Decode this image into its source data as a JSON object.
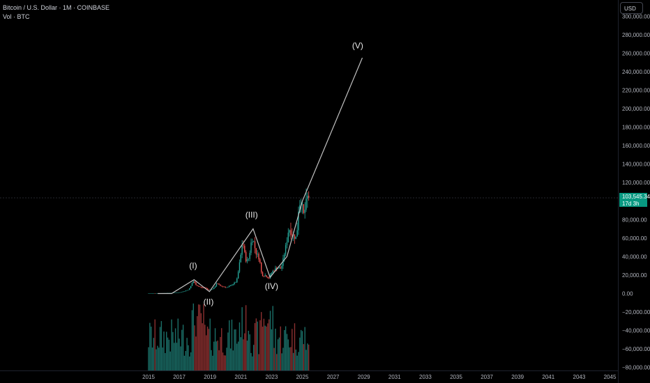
{
  "header": {
    "symbol_line": "Bitcoin / U.S. Dollar · 1M · COINBASE",
    "volume_line": "Vol · BTC"
  },
  "currency_button": "USD",
  "last_price": {
    "value": "103,545.34",
    "countdown": "17d 3h",
    "price": 103545.34
  },
  "colors": {
    "background": "#000000",
    "up": "#26a69a",
    "down": "#ef5350",
    "up_volume": "#1b6f68",
    "down_volume": "#8b3030",
    "wave_line": "#c2c2c2",
    "badge": "#089981"
  },
  "chart_data": {
    "type": "candlestick",
    "title": "Bitcoin / U.S. Dollar · 1M · COINBASE",
    "yaxis": {
      "ylim": [
        -85000,
        310000
      ],
      "ticks": [
        -80000,
        -60000,
        -40000,
        -20000,
        0,
        20000,
        40000,
        60000,
        80000,
        120000,
        140000,
        160000,
        180000,
        200000,
        220000,
        240000,
        260000,
        280000,
        300000
      ],
      "tick_labels": [
        "−80,000.00",
        "−60,000.00",
        "−40,000.00",
        "−20,000.00",
        "0.00",
        "20,000.00",
        "40,000.00",
        "60,000.00",
        "80,000.00",
        "120,000.00",
        "140,000.00",
        "160,000.00",
        "180,000.00",
        "200,000.00",
        "220,000.00",
        "240,000.00",
        "260,000.00",
        "280,000.00",
        "300,000.00"
      ]
    },
    "xaxis": {
      "range": [
        2015.0,
        2045.0
      ],
      "ticks": [
        2015,
        2017,
        2019,
        2021,
        2023,
        2025,
        2027,
        2029,
        2031,
        2033,
        2035,
        2037,
        2039,
        2041,
        2043,
        2045
      ],
      "tick_labels": [
        "2015",
        "2017",
        "2019",
        "2021",
        "2023",
        "2025",
        "2027",
        "2029",
        "2031",
        "2033",
        "2035",
        "2037",
        "2039",
        "2041",
        "2043",
        "2045"
      ]
    },
    "anchors": [
      {
        "t": 2015.0,
        "p": 250
      },
      {
        "t": 2016.0,
        "p": 430
      },
      {
        "t": 2016.5,
        "p": 650
      },
      {
        "t": 2017.0,
        "p": 1000
      },
      {
        "t": 2017.4,
        "p": 2500
      },
      {
        "t": 2017.7,
        "p": 4500
      },
      {
        "t": 2017.96,
        "p": 14000
      },
      {
        "t": 2018.2,
        "p": 9000
      },
      {
        "t": 2018.5,
        "p": 6500
      },
      {
        "t": 2018.8,
        "p": 6300
      },
      {
        "t": 2018.96,
        "p": 3700
      },
      {
        "t": 2019.3,
        "p": 5300
      },
      {
        "t": 2019.5,
        "p": 11000
      },
      {
        "t": 2019.8,
        "p": 8000
      },
      {
        "t": 2020.2,
        "p": 6500
      },
      {
        "t": 2020.5,
        "p": 9500
      },
      {
        "t": 2020.8,
        "p": 13000
      },
      {
        "t": 2020.96,
        "p": 29000
      },
      {
        "t": 2021.2,
        "p": 58000
      },
      {
        "t": 2021.4,
        "p": 37000
      },
      {
        "t": 2021.55,
        "p": 35000
      },
      {
        "t": 2021.8,
        "p": 61000
      },
      {
        "t": 2021.9,
        "p": 57000
      },
      {
        "t": 2022.1,
        "p": 43000
      },
      {
        "t": 2022.3,
        "p": 38000
      },
      {
        "t": 2022.45,
        "p": 20000
      },
      {
        "t": 2022.7,
        "p": 19500
      },
      {
        "t": 2022.9,
        "p": 16500
      },
      {
        "t": 2023.1,
        "p": 23000
      },
      {
        "t": 2023.4,
        "p": 28000
      },
      {
        "t": 2023.7,
        "p": 27000
      },
      {
        "t": 2023.9,
        "p": 42000
      },
      {
        "t": 2024.2,
        "p": 71000
      },
      {
        "t": 2024.5,
        "p": 63000
      },
      {
        "t": 2024.7,
        "p": 60000
      },
      {
        "t": 2024.85,
        "p": 96000
      },
      {
        "t": 2025.0,
        "p": 102000
      },
      {
        "t": 2025.15,
        "p": 84000
      },
      {
        "t": 2025.3,
        "p": 94000
      },
      {
        "t": 2025.4,
        "p": 103545
      }
    ],
    "wave_line": [
      {
        "t": 2015.6,
        "p": 0
      },
      {
        "t": 2016.5,
        "p": 0
      },
      {
        "t": 2017.96,
        "p": 15000
      },
      {
        "t": 2018.96,
        "p": 2000
      },
      {
        "t": 2021.8,
        "p": 70000
      },
      {
        "t": 2022.9,
        "p": 17500
      },
      {
        "t": 2024.0,
        "p": 40000
      },
      {
        "t": 2025.0,
        "p": 100000
      },
      {
        "t": 2028.9,
        "p": 255000
      }
    ],
    "wave_labels": [
      {
        "text": "(I)",
        "t": 2017.9,
        "p": 27000
      },
      {
        "text": "(II)",
        "t": 2018.9,
        "p": -12000
      },
      {
        "text": "(III)",
        "t": 2021.7,
        "p": 82000
      },
      {
        "text": "(IV)",
        "t": 2023.0,
        "p": 5000
      },
      {
        "text": "(V)",
        "t": 2028.6,
        "p": 265000
      }
    ]
  }
}
